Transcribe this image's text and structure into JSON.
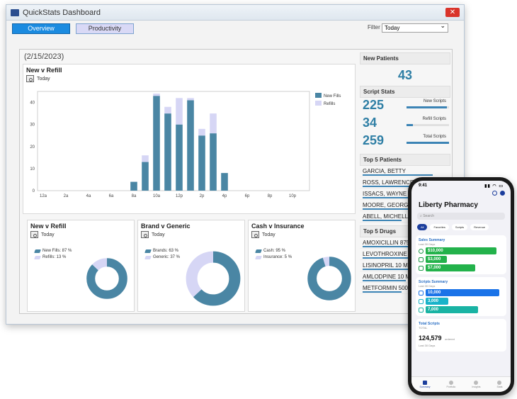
{
  "window": {
    "title": "QuickStats Dashboard",
    "close": "✕"
  },
  "tabs": [
    {
      "label": "Overview"
    },
    {
      "label": "Productivity"
    }
  ],
  "filter": {
    "label": "Filter",
    "value": "Today"
  },
  "date": "(2/15/2023)",
  "new_v_refill_chart": {
    "title": "New v Refill",
    "period": "Today",
    "legend": {
      "new": "New Fills",
      "refill": "Refills"
    }
  },
  "chart_data": {
    "type": "bar",
    "categories": [
      "12a",
      "1a",
      "2a",
      "3a",
      "4a",
      "5a",
      "6a",
      "7a",
      "8a",
      "9a",
      "10a",
      "11a",
      "12p",
      "1p",
      "2p",
      "3p",
      "4p",
      "5p",
      "6p",
      "7p",
      "8p",
      "9p",
      "10p",
      "11p"
    ],
    "x_tick_labels": [
      "12a",
      "2a",
      "4a",
      "6a",
      "8a",
      "10a",
      "12p",
      "2p",
      "4p",
      "6p",
      "8p",
      "10p"
    ],
    "series": [
      {
        "name": "New Fills",
        "values": [
          0,
          0,
          0,
          0,
          0,
          0,
          0,
          0,
          4,
          13,
          43,
          35,
          30,
          41,
          25,
          26,
          8,
          0,
          0,
          0,
          0,
          0,
          0,
          0
        ]
      },
      {
        "name": "Refills",
        "values": [
          0,
          0,
          0,
          0,
          0,
          0,
          0,
          0,
          0,
          3,
          1,
          3,
          12,
          1,
          3,
          9,
          0,
          0,
          0,
          0,
          0,
          0,
          0,
          0
        ]
      }
    ],
    "stacked": true,
    "ylim": [
      0,
      45
    ],
    "y_ticks": [
      0,
      10,
      20,
      30,
      40
    ],
    "colors": {
      "new": "#4a86a4",
      "refill": "#d6d6f5"
    },
    "grid": false,
    "legend_position": "top-right"
  },
  "donuts": [
    {
      "title": "New v Refill",
      "period": "Today",
      "labels": [
        "New Fills: 87 %",
        "Refills: 13 %"
      ],
      "values": [
        87,
        13
      ]
    },
    {
      "title": "Brand v Generic",
      "period": "Today",
      "labels": [
        "Brands: 63 %",
        "Generic: 37 %"
      ],
      "values": [
        63,
        37
      ]
    },
    {
      "title": "Cash v Insurance",
      "period": "Today",
      "labels": [
        "Cash: 95 %",
        "Insurance: 5 %"
      ],
      "values": [
        95,
        5
      ]
    }
  ],
  "new_patients": {
    "header": "New Patients",
    "value": "43"
  },
  "script_stats": {
    "header": "Script Stats",
    "items": [
      {
        "value": "225",
        "label": "New Scripts",
        "fill": 0.95
      },
      {
        "value": "34",
        "label": "Refill Scripts",
        "fill": 0.15
      },
      {
        "value": "259",
        "label": "Total Scripts",
        "fill": 1.0
      }
    ]
  },
  "top_patients": {
    "header": "Top 5 Patients",
    "items": [
      {
        "name": "GARCIA, BETTY",
        "fill": 0.9
      },
      {
        "name": "ROSS, LAWRENCE",
        "fill": 0.75
      },
      {
        "name": "ISSACS, WAYNE",
        "fill": 0.7
      },
      {
        "name": "MOORE, GEORGE",
        "fill": 0.6
      },
      {
        "name": "ABELL, MICHELLE",
        "fill": 0.5
      }
    ]
  },
  "top_drugs": {
    "header": "Top 5 Drugs",
    "items": [
      {
        "name": "AMOXICILLIN 875 M",
        "fill": 0.9
      },
      {
        "name": "LEVOTHROXINE 10",
        "fill": 0.75
      },
      {
        "name": "LISINOPRIL 10 MG",
        "fill": 0.65
      },
      {
        "name": "AMLODPINE 10 MG",
        "fill": 0.55
      },
      {
        "name": "METFORMIN 500 M",
        "fill": 0.5
      }
    ]
  },
  "phone": {
    "time": "9:41",
    "title": "Liberty Pharmacy",
    "search_placeholder": "Search",
    "chips": [
      "All",
      "Favorites",
      "Scripts",
      "Revenue"
    ],
    "sales": {
      "title": "Sales Summary",
      "sub": "Last 30 Days",
      "values": [
        "$10,000",
        "$3,000",
        "$7,000"
      ]
    },
    "scripts": {
      "title": "Scripts Summary",
      "sub": "Last 30 Days",
      "values": [
        "10,000",
        "3,000",
        "7,000"
      ]
    },
    "total": {
      "title": "Total Scripts",
      "sub_label": "TOTAL",
      "value": "124,579",
      "unit": "ordered",
      "period": "Last 30 Days"
    },
    "tabbar": [
      "Summary",
      "Portfolio",
      "Insights",
      "Stats"
    ]
  }
}
